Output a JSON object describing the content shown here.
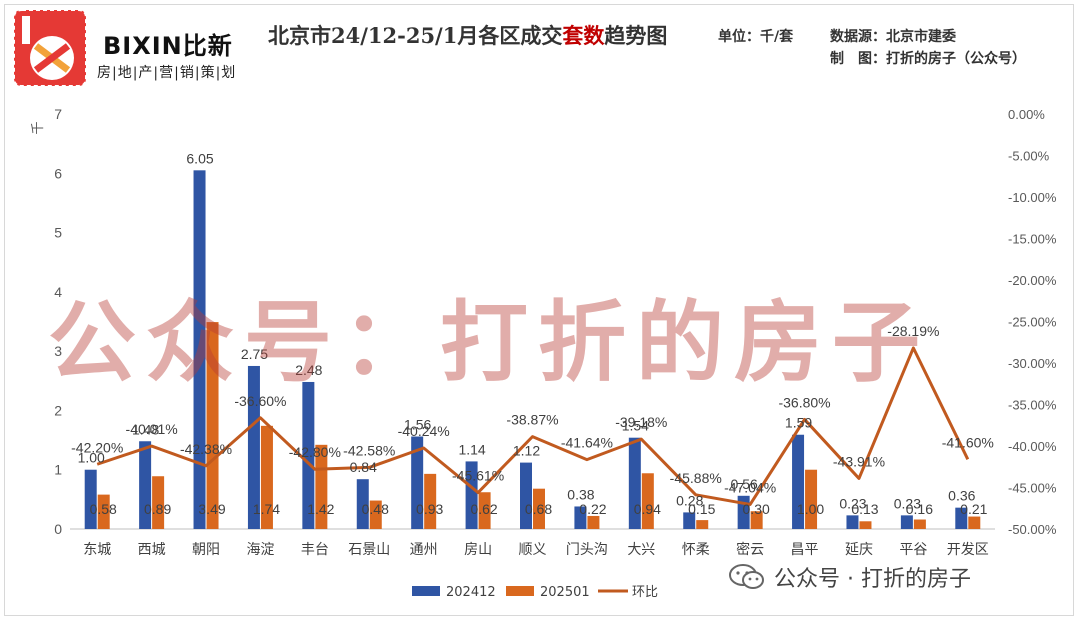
{
  "header": {
    "brand": "BIXIN比新",
    "brand_sub": "房|地|产|营|销|策|划",
    "title_prefix": "北京市24/12-25/1月各区成交",
    "title_highlight": "套数",
    "title_suffix": "趋势图",
    "unit": "单位：千/套",
    "source": "数据源：北京市建委",
    "maker": "制　图：打折的房子（公众号）"
  },
  "watermark": {
    "text": "公众号：打折的房子",
    "wechat": "公众号 · 打折的房子"
  },
  "colors": {
    "bar1": "#2f55a4",
    "bar2": "#d9681e",
    "line": "#c15a1f",
    "axis": "#595959",
    "watermark": "#b83c34"
  },
  "chart_data": {
    "type": "bar",
    "categories": [
      "东城",
      "西城",
      "朝阳",
      "海淀",
      "丰台",
      "石景山",
      "通州",
      "房山",
      "顺义",
      "门头沟",
      "大兴",
      "怀柔",
      "密云",
      "昌平",
      "延庆",
      "平谷",
      "开发区"
    ],
    "series": [
      {
        "name": "202412",
        "type": "bar",
        "axis": "left",
        "values": [
          1.0,
          1.48,
          6.05,
          2.75,
          2.48,
          0.84,
          1.56,
          1.14,
          1.12,
          0.38,
          1.54,
          0.28,
          0.56,
          1.59,
          0.23,
          0.23,
          0.36
        ]
      },
      {
        "name": "202501",
        "type": "bar",
        "axis": "left",
        "values": [
          0.58,
          0.89,
          3.49,
          1.74,
          1.42,
          0.48,
          0.93,
          0.62,
          0.68,
          0.22,
          0.94,
          0.15,
          0.3,
          1.0,
          0.13,
          0.16,
          0.21
        ]
      },
      {
        "name": "环比",
        "type": "line",
        "axis": "right",
        "values": [
          -42.2,
          -40.01,
          -42.38,
          -36.6,
          -42.8,
          -42.58,
          -40.24,
          -45.61,
          -38.87,
          -41.64,
          -39.18,
          -45.88,
          -47.04,
          -36.8,
          -43.91,
          -28.19,
          -41.6
        ],
        "labels": [
          "-42.20%",
          "-40.01%",
          "-42.38%",
          "-36.60%",
          "-42.80%",
          "-42.58%",
          "-40.24%",
          "-45.61%",
          "-38.87%",
          "-41.64%",
          "-39.18%",
          "-45.88%",
          "-47.04%",
          "-36.80%",
          "-43.91%",
          "-28.19%",
          "-41.60%"
        ]
      }
    ],
    "bar_labels": {
      "202412": [
        "1.00",
        "1.48",
        "6.05",
        "2.75",
        "2.48",
        "0.84",
        "1.56",
        "1.14",
        "1.12",
        "0.38",
        "1.54",
        "0.28",
        "0.56",
        "1.59",
        "0.23",
        "0.23",
        "0.36"
      ],
      "202501": [
        "0.58",
        "0.89",
        "3.49",
        "1.74",
        "1.42",
        "0.48",
        "0.93",
        "0.62",
        "0.68",
        "0.22",
        "0.94",
        "0.15",
        "0.30",
        "1.00",
        "0.13",
        "0.16",
        "0.21"
      ]
    },
    "ylabel": "千",
    "ylim": [
      0,
      7
    ],
    "yticks": [
      "0",
      "1",
      "2",
      "3",
      "4",
      "5",
      "6",
      "7"
    ],
    "y2lim": [
      -50,
      0
    ],
    "y2ticks": [
      "0.00%",
      "-5.00%",
      "-10.00%",
      "-15.00%",
      "-20.00%",
      "-25.00%",
      "-30.00%",
      "-35.00%",
      "-40.00%",
      "-45.00%",
      "-50.00%"
    ],
    "legend": "bottom",
    "grid": false
  }
}
